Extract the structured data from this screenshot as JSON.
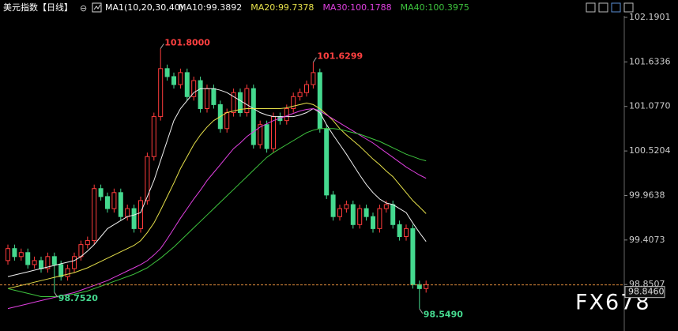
{
  "chart_data": {
    "type": "candlestick",
    "title": "美元指数【日线】",
    "title_icon": "⊖",
    "indicator_title": "MA1(10,20,30,40)",
    "watermark": "FX678",
    "ylim": [
      98.27,
      102.21
    ],
    "yticks": [
      98.8507,
      99.4073,
      99.9638,
      100.5204,
      {
        "value": 101.077,
        "label": "101.0770"
      },
      101.6336,
      102.1901
    ],
    "up_color": "#ff3c3c",
    "down_color": "#45d98f",
    "open": [
      99.15,
      99.3,
      99.2,
      99.25,
      99.1,
      99.15,
      99.05,
      99.2,
      99.1,
      98.95,
      99.05,
      99.2,
      99.35,
      99.4,
      100.05,
      99.95,
      99.8,
      100.0,
      99.7,
      99.8,
      99.55,
      99.9,
      100.45,
      100.95,
      101.55,
      101.45,
      101.35,
      101.5,
      101.2,
      101.4,
      101.05,
      101.3,
      101.1,
      100.8,
      101.0,
      101.25,
      101.0,
      101.3,
      100.6,
      100.85,
      100.55,
      100.95,
      100.9,
      101.05,
      101.2,
      101.25,
      101.35,
      101.5,
      100.8,
      99.97,
      99.7,
      99.8,
      99.85,
      99.6,
      99.8,
      99.7,
      99.55,
      99.8,
      99.85,
      99.6,
      99.45,
      99.55,
      98.85,
      98.8
    ],
    "high": [
      99.35,
      99.35,
      99.3,
      99.3,
      99.2,
      99.2,
      99.25,
      99.25,
      99.15,
      99.1,
      99.25,
      99.4,
      99.45,
      100.1,
      100.1,
      100.0,
      100.05,
      100.05,
      99.85,
      99.85,
      99.95,
      100.5,
      101.0,
      101.8,
      101.6,
      101.5,
      101.55,
      101.55,
      101.45,
      101.45,
      101.35,
      101.35,
      101.15,
      101.05,
      101.3,
      101.3,
      101.35,
      101.35,
      100.9,
      100.9,
      101.0,
      101.0,
      101.1,
      101.25,
      101.3,
      101.4,
      101.6299,
      101.55,
      100.85,
      100.02,
      99.85,
      99.9,
      99.9,
      99.85,
      99.85,
      99.75,
      99.85,
      99.9,
      99.9,
      99.65,
      99.6,
      99.6,
      98.9,
      98.9
    ],
    "low": [
      99.1,
      99.15,
      99.15,
      99.05,
      99.05,
      99.0,
      99.0,
      98.752,
      98.9,
      98.9,
      99.0,
      99.15,
      99.3,
      99.35,
      99.9,
      99.75,
      99.75,
      99.65,
      99.65,
      99.5,
      99.5,
      99.85,
      100.4,
      100.9,
      101.4,
      101.3,
      101.3,
      101.15,
      101.15,
      101.0,
      101.0,
      101.05,
      100.75,
      100.75,
      100.95,
      100.95,
      100.95,
      100.55,
      100.55,
      100.5,
      100.5,
      100.85,
      100.85,
      101.0,
      101.15,
      101.2,
      101.3,
      100.75,
      99.92,
      99.65,
      99.65,
      99.75,
      99.55,
      99.55,
      99.65,
      99.5,
      99.5,
      99.75,
      99.55,
      99.4,
      99.4,
      98.8,
      98.549,
      98.75
    ],
    "close": [
      99.3,
      99.2,
      99.25,
      99.1,
      99.15,
      99.05,
      99.2,
      99.1,
      98.95,
      99.05,
      99.2,
      99.35,
      99.4,
      100.05,
      99.95,
      99.8,
      100.0,
      99.7,
      99.8,
      99.55,
      99.9,
      100.45,
      100.95,
      101.55,
      101.45,
      101.35,
      101.5,
      101.2,
      101.4,
      101.05,
      101.3,
      101.1,
      100.8,
      101.0,
      101.25,
      101.0,
      101.3,
      100.6,
      100.85,
      100.55,
      100.95,
      100.9,
      101.05,
      101.2,
      101.25,
      101.35,
      101.5,
      100.8,
      99.97,
      99.7,
      99.8,
      99.85,
      99.6,
      99.8,
      99.7,
      99.55,
      99.8,
      99.85,
      99.6,
      99.45,
      99.55,
      98.85,
      98.8,
      98.85
    ],
    "series": [
      {
        "name": "MA10:99.3892",
        "color": "#f0f0f0",
        "values": [
          98.95,
          98.97,
          98.99,
          99.01,
          99.03,
          99.05,
          99.07,
          99.09,
          99.11,
          99.13,
          99.15,
          99.2,
          99.27,
          99.35,
          99.45,
          99.55,
          99.6,
          99.65,
          99.7,
          99.72,
          99.75,
          99.95,
          100.15,
          100.4,
          100.65,
          100.9,
          101.05,
          101.15,
          101.25,
          101.3,
          101.3,
          101.3,
          101.28,
          101.25,
          101.2,
          101.15,
          101.1,
          101.05,
          101.0,
          100.97,
          100.95,
          100.95,
          100.95,
          100.95,
          100.97,
          101.0,
          101.05,
          101.0,
          100.85,
          100.72,
          100.6,
          100.48,
          100.35,
          100.22,
          100.1,
          100.0,
          99.92,
          99.87,
          99.85,
          99.8,
          99.75,
          99.62,
          99.5,
          99.3892
        ]
      },
      {
        "name": "MA20:99.7378",
        "color": "#e6e04a",
        "values": [
          98.8,
          98.82,
          98.84,
          98.86,
          98.88,
          98.9,
          98.92,
          98.94,
          98.96,
          98.98,
          99.0,
          99.03,
          99.06,
          99.1,
          99.14,
          99.18,
          99.22,
          99.26,
          99.3,
          99.34,
          99.4,
          99.5,
          99.62,
          99.78,
          99.95,
          100.12,
          100.3,
          100.45,
          100.6,
          100.72,
          100.82,
          100.9,
          100.95,
          101.0,
          101.02,
          101.04,
          101.05,
          101.05,
          101.05,
          101.05,
          101.05,
          101.05,
          101.06,
          101.08,
          101.1,
          101.12,
          101.1,
          101.05,
          100.98,
          100.9,
          100.8,
          100.72,
          100.65,
          100.58,
          100.5,
          100.42,
          100.35,
          100.27,
          100.2,
          100.1,
          100.0,
          99.9,
          99.82,
          99.7378
        ]
      },
      {
        "name": "MA30:100.1788",
        "color": "#e040e0",
        "values": [
          98.55,
          98.57,
          98.59,
          98.61,
          98.63,
          98.65,
          98.67,
          98.69,
          98.71,
          98.73,
          98.75,
          98.78,
          98.81,
          98.84,
          98.87,
          98.9,
          98.94,
          98.98,
          99.02,
          99.06,
          99.1,
          99.15,
          99.22,
          99.3,
          99.42,
          99.55,
          99.68,
          99.8,
          99.92,
          100.03,
          100.15,
          100.25,
          100.35,
          100.45,
          100.55,
          100.62,
          100.7,
          100.76,
          100.82,
          100.86,
          100.9,
          100.93,
          100.96,
          100.99,
          101.02,
          101.04,
          101.05,
          101.02,
          100.97,
          100.92,
          100.87,
          100.82,
          100.77,
          100.72,
          100.67,
          100.62,
          100.56,
          100.5,
          100.44,
          100.38,
          100.32,
          100.27,
          100.22,
          100.1788
        ]
      },
      {
        "name": "MA40:100.3975",
        "color": "#3ec43e",
        "values": [
          98.8,
          98.78,
          98.76,
          98.74,
          98.72,
          98.7,
          98.7,
          98.7,
          98.71,
          98.72,
          98.73,
          98.75,
          98.77,
          98.8,
          98.83,
          98.86,
          98.89,
          98.92,
          98.95,
          98.98,
          99.02,
          99.06,
          99.12,
          99.18,
          99.25,
          99.32,
          99.4,
          99.48,
          99.56,
          99.64,
          99.72,
          99.8,
          99.88,
          99.96,
          100.04,
          100.12,
          100.2,
          100.28,
          100.36,
          100.44,
          100.5,
          100.55,
          100.6,
          100.65,
          100.7,
          100.75,
          100.78,
          100.8,
          100.8,
          100.8,
          100.79,
          100.77,
          100.75,
          100.73,
          100.7,
          100.67,
          100.64,
          100.6,
          100.56,
          100.52,
          100.48,
          100.45,
          100.42,
          100.3975
        ]
      }
    ],
    "last_price": {
      "value": 98.846,
      "label": "98.8460"
    },
    "annotations": [
      {
        "label": "101.8000",
        "value": 101.8,
        "color": "#ff4040"
      },
      {
        "label": "101.6299",
        "value": 101.6299,
        "color": "#ff4040"
      },
      {
        "label": "98.7520",
        "value": 98.752,
        "color": "#45d98f"
      },
      {
        "label": "98.5490",
        "value": 98.549,
        "color": "#45d98f"
      }
    ]
  }
}
